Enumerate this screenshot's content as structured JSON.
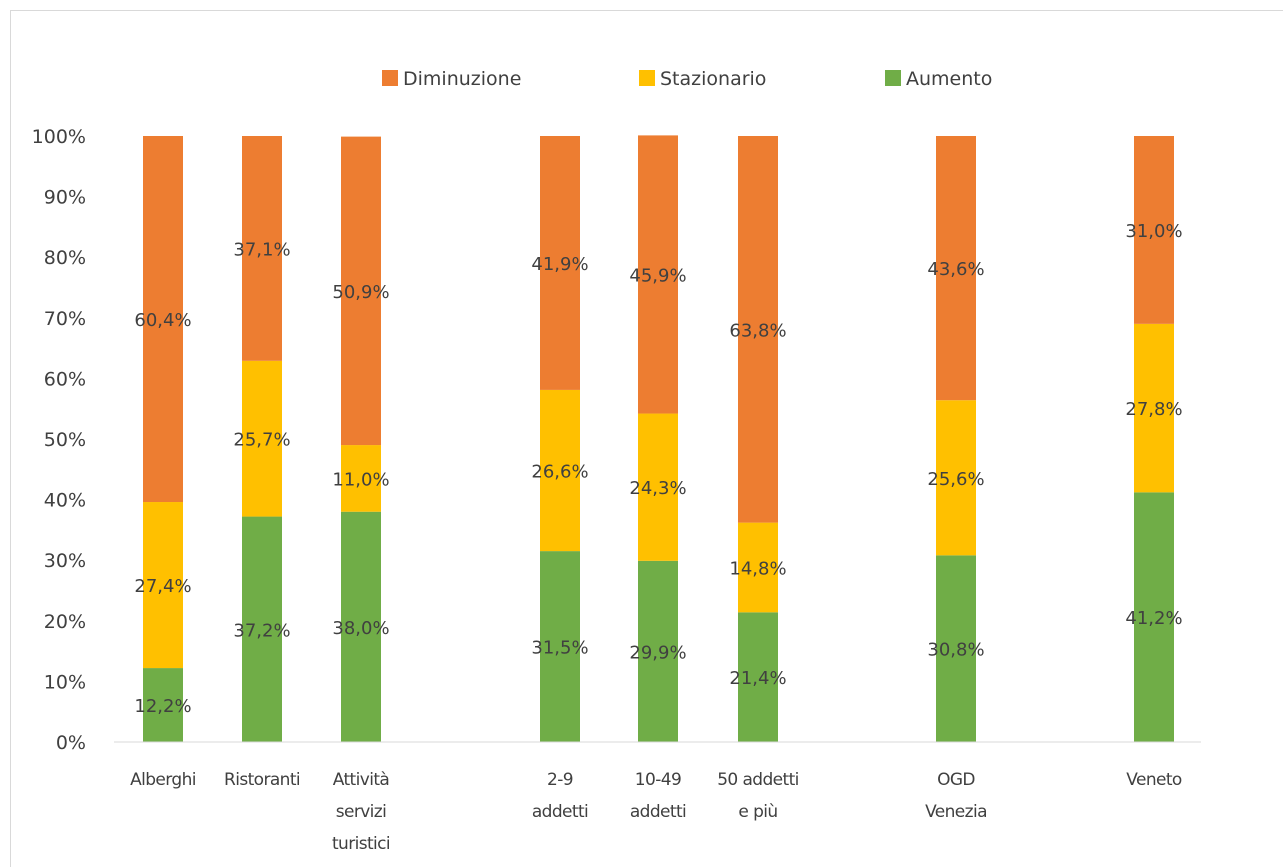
{
  "chart_data": {
    "type": "bar",
    "stacked": true,
    "percent_stacked": true,
    "title": "",
    "xlabel": "",
    "ylabel": "",
    "ylim": [
      0,
      100
    ],
    "y_ticks": [
      "0%",
      "10%",
      "20%",
      "30%",
      "40%",
      "50%",
      "60%",
      "70%",
      "80%",
      "90%",
      "100%"
    ],
    "grid": false,
    "legend_position": "top",
    "categories": [
      [
        "Alberghi"
      ],
      [
        "Ristoranti"
      ],
      [
        "Attività",
        "servizi",
        "turistici"
      ],
      [
        "2-9",
        "addetti"
      ],
      [
        "10-49",
        "addetti"
      ],
      [
        "50 addetti",
        "e più"
      ],
      [
        "OGD",
        "Venezia"
      ],
      [
        "Veneto"
      ]
    ],
    "series": [
      {
        "name": "Aumento",
        "color": "#70ad47",
        "values": [
          12.2,
          37.2,
          38.0,
          31.5,
          29.9,
          21.4,
          30.8,
          41.2
        ],
        "labels": [
          "12,2%",
          "37,2%",
          "38,0%",
          "31,5%",
          "29,9%",
          "21,4%",
          "30,8%",
          "41,2%"
        ]
      },
      {
        "name": "Stazionario",
        "color": "#ffc000",
        "values": [
          27.4,
          25.7,
          11.0,
          26.6,
          24.3,
          14.8,
          25.6,
          27.8
        ],
        "labels": [
          "27,4%",
          "25,7%",
          "11,0%",
          "26,6%",
          "24,3%",
          "14,8%",
          "25,6%",
          "27,8%"
        ]
      },
      {
        "name": "Diminuzione",
        "color": "#ed7d31",
        "values": [
          60.4,
          37.1,
          50.9,
          41.9,
          45.9,
          63.8,
          43.6,
          31.0
        ],
        "labels": [
          "60,4%",
          "37,1%",
          "50,9%",
          "41,9%",
          "45,9%",
          "63,8%",
          "43,6%",
          "31,0%"
        ]
      }
    ],
    "legend_order": [
      "Diminuzione",
      "Stazionario",
      "Aumento"
    ]
  }
}
